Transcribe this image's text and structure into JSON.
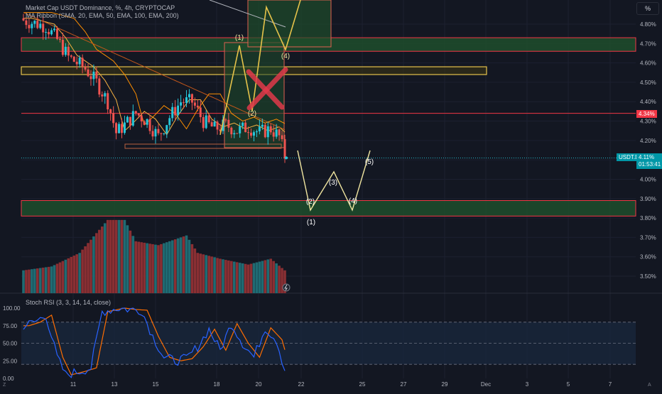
{
  "header": {
    "title": "Market Cap USDT Dominance, %, 4h, CRYPTOCAP",
    "indicator": "MA Ribbon (SMA, 20, EMA, 50, EMA, 100, EMA, 200)",
    "scale_button": "%"
  },
  "price_axis": {
    "ticks": [
      "4.80%",
      "4.70%",
      "4.60%",
      "4.50%",
      "4.40%",
      "4.30%",
      "4.20%",
      "4.10%",
      "4.00%",
      "3.90%",
      "3.80%",
      "3.70%",
      "3.60%",
      "3.50%"
    ],
    "current_symbol": "USDT.D",
    "current_value": "4.11%",
    "countdown": "01:53:41",
    "resistance_value": "4.34%"
  },
  "time_axis": {
    "ticks": [
      "11",
      "13",
      "15",
      "18",
      "20",
      "22",
      "25",
      "27",
      "29",
      "Dec",
      "3",
      "5",
      "7"
    ]
  },
  "stoch": {
    "label": "Stoch RSI (3, 3, 14, 14, close)",
    "ticks": [
      "100.00",
      "75.00",
      "50.00",
      "25.00",
      "0.00"
    ]
  },
  "annotations": {
    "wave_1": "(1)",
    "wave_2": "(2)",
    "wave_4": "(4)",
    "proj_1": "(1)",
    "proj_2": "(2)",
    "proj_3": "(3)",
    "proj_4": "(4)",
    "proj_5": "(5)"
  },
  "chart_data": {
    "type": "candlestick",
    "title": "Market Cap USDT Dominance, %, 4h, CRYPTOCAP",
    "ylim": [
      3.43,
      4.86
    ],
    "y_ticks": [
      4.8,
      4.7,
      4.6,
      4.5,
      4.4,
      4.3,
      4.2,
      4.1,
      4.0,
      3.9,
      3.8,
      3.7,
      3.6,
      3.5
    ],
    "x_ticks": [
      "11",
      "13",
      "15",
      "18",
      "20",
      "22",
      "25",
      "27",
      "29",
      "Dec",
      "3",
      "5",
      "7"
    ],
    "last_price": 4.11,
    "levels": {
      "resistance_red": 4.34,
      "current_price": 4.11,
      "red_line_top": 4.73
    },
    "zones": [
      {
        "from": 4.66,
        "to": 4.73,
        "color": "green"
      },
      {
        "from": 4.54,
        "to": 4.58,
        "color": "yellow"
      },
      {
        "from": 3.81,
        "to": 3.89,
        "color": "green"
      }
    ],
    "stoch_rsi": {
      "label": "Stoch RSI (3, 3, 14, 14, close)",
      "levels": [
        80,
        50,
        20
      ],
      "ylim": [
        0,
        100
      ]
    },
    "colors": {
      "up": "#26c6da",
      "down": "#ef5350",
      "vol_up": "#1f6b73",
      "vol_down": "#8a2f33",
      "zone_green": "#1f4d2b",
      "zone_yellow": "#e6c34a",
      "wave": "#f1e6a0",
      "cross": "#e0394a",
      "k_line": "#2962ff",
      "d_line": "#ff6d00"
    }
  }
}
